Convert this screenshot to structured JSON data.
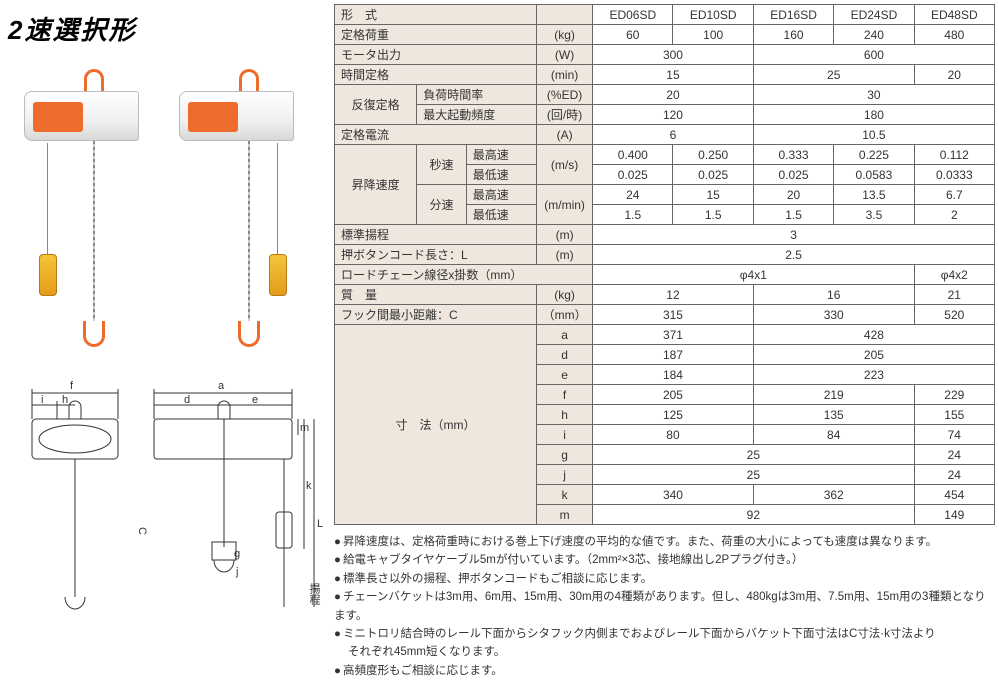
{
  "title": "2速選択形",
  "models": [
    "ED06SD",
    "ED10SD",
    "ED16SD",
    "ED24SD",
    "ED48SD"
  ],
  "labels": {
    "model": "形　式",
    "load": "定格荷重",
    "motor": "モータ出力",
    "time": "時間定格",
    "repeat": "反復定格",
    "dutyrate": "負荷時間率",
    "maxstart": "最大起動頻度",
    "current": "定格電流",
    "speed": "昇降速度",
    "sec": "秒速",
    "min": "分速",
    "hi": "最高速",
    "lo": "最低速",
    "lift": "標準揚程",
    "cord": "押ボタンコード長さ：L",
    "chain": "ロードチェーン線径x掛数（mm）",
    "mass": "質　量",
    "hookC": "フック間最小距離：C",
    "dims": "寸　法（mm）"
  },
  "units": {
    "kg": "(kg)",
    "W": "(W)",
    "min": "(min)",
    "ED": "(%ED)",
    "ph": "(回/時)",
    "A": "(A)",
    "ms": "(m/s)",
    "mmin": "(m/min)",
    "m": "(m)",
    "mm": "（mm）"
  },
  "rows": {
    "load": [
      "60",
      "100",
      "160",
      "240",
      "480"
    ],
    "motor": [
      [
        "300",
        2
      ],
      [
        "600",
        3
      ]
    ],
    "time": [
      [
        "15",
        2
      ],
      [
        "25",
        2
      ],
      [
        "20",
        1
      ]
    ],
    "duty": [
      [
        "20",
        2
      ],
      [
        "30",
        3
      ]
    ],
    "start": [
      [
        "120",
        2
      ],
      [
        "180",
        3
      ]
    ],
    "current": [
      [
        "6",
        2
      ],
      [
        "10.5",
        3
      ]
    ],
    "sec_hi": [
      "0.400",
      "0.250",
      "0.333",
      "0.225",
      "0.112"
    ],
    "sec_lo": [
      "0.025",
      "0.025",
      "0.025",
      "0.0583",
      "0.0333"
    ],
    "min_hi": [
      "24",
      "15",
      "20",
      "13.5",
      "6.7"
    ],
    "min_lo": [
      "1.5",
      "1.5",
      "1.5",
      "3.5",
      "2"
    ],
    "lift": "3",
    "cord": "2.5",
    "chain": [
      [
        "φ4x1",
        4
      ],
      [
        "φ4x2",
        1
      ]
    ],
    "mass": [
      [
        "12",
        2
      ],
      [
        "16",
        2
      ],
      [
        "21",
        1
      ]
    ],
    "hookC": [
      [
        "315",
        2
      ],
      [
        "330",
        2
      ],
      [
        "520",
        1
      ]
    ],
    "a": [
      [
        "371",
        2
      ],
      [
        "428",
        3
      ]
    ],
    "d": [
      [
        "187",
        2
      ],
      [
        "205",
        3
      ]
    ],
    "e": [
      [
        "184",
        2
      ],
      [
        "223",
        3
      ]
    ],
    "f": [
      [
        "205",
        2
      ],
      [
        "219",
        2
      ],
      [
        "229",
        1
      ]
    ],
    "h": [
      [
        "125",
        2
      ],
      [
        "135",
        2
      ],
      [
        "155",
        1
      ]
    ],
    "i": [
      [
        "80",
        2
      ],
      [
        "84",
        2
      ],
      [
        "74",
        1
      ]
    ],
    "g": [
      [
        "25",
        4
      ],
      [
        "24",
        1
      ]
    ],
    "j": [
      [
        "25",
        4
      ],
      [
        "24",
        1
      ]
    ],
    "k": [
      [
        "340",
        2
      ],
      [
        "362",
        2
      ],
      [
        "454",
        1
      ]
    ],
    "m": [
      [
        "92",
        4
      ],
      [
        "149",
        1
      ]
    ]
  },
  "dimLetters": [
    "a",
    "d",
    "e",
    "f",
    "h",
    "i",
    "g",
    "j",
    "k",
    "m"
  ],
  "notes": [
    "昇降速度は、定格荷重時における巻上下げ速度の平均的な値です。また、荷重の大小によっても速度は異なります。",
    "給電キャブタイヤケーブル5mが付いています。（2mm²×3芯、接地線出し2Pプラグ付き。）",
    "標準長さ以外の揚程、押ボタンコードもご相談に応じます。",
    "チェーンバケットは3m用、6m用、15m用、30m用の4種類があります。但し、480kgは3m用、7.5m用、15m用の3種類となります。",
    "ミニトロリ結合時のレール下面からシタフック内側までおよびレール下面からバケット下面寸法はC寸法·k寸法より",
    "それぞれ45mm短くなります。",
    "高頻度形もご相談に応じます。"
  ],
  "noteCont": [
    false,
    false,
    false,
    false,
    false,
    true,
    false
  ],
  "colors": {
    "header_bg": "#efe6de",
    "border": "#666666",
    "accent": "#ef6b2c",
    "pendant": "#e8a828"
  },
  "schematic": {
    "letters": [
      "f",
      "i",
      "h",
      "a",
      "d",
      "e",
      "m",
      "k",
      "L",
      "C",
      "g",
      "j"
    ],
    "lift_label": "揚程"
  }
}
